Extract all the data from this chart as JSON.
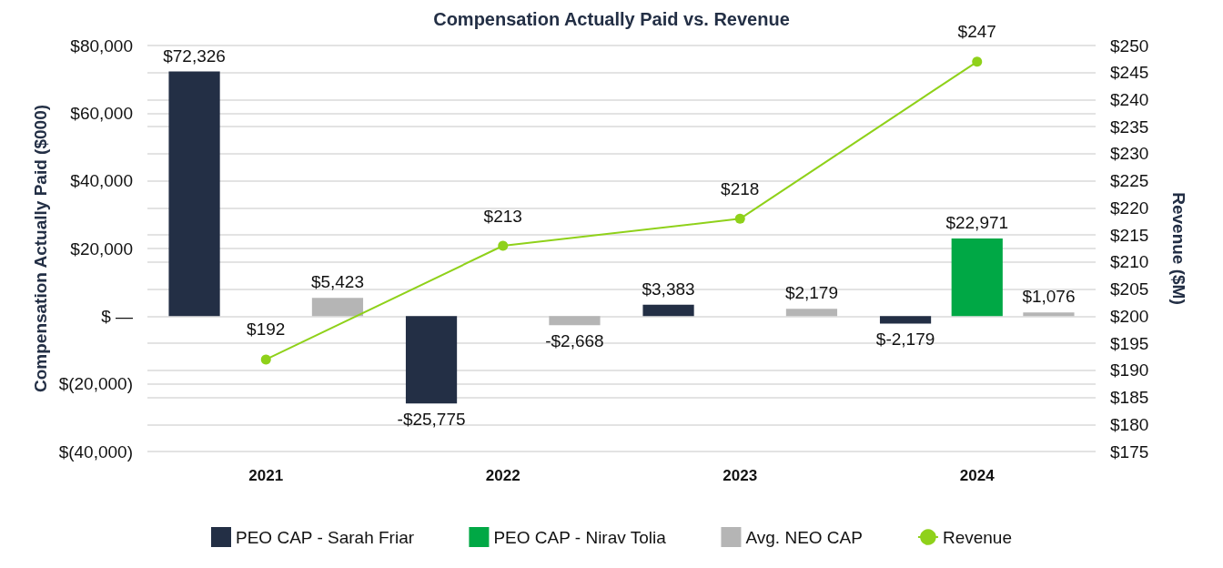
{
  "chart_data": {
    "type": "bar",
    "title": "Compensation Actually Paid vs. Revenue",
    "ylabel": "Compensation Actually Paid ($000)",
    "y2label": "Revenue ($M)",
    "categories": [
      "2021",
      "2022",
      "2023",
      "2024"
    ],
    "series": [
      {
        "name": "PEO CAP - Sarah Friar",
        "color": "#232f45",
        "values": [
          72326,
          -25775,
          3383,
          -2179
        ],
        "value_labels": [
          "$72,326",
          "-$25,775",
          "$3,383",
          "$-2,179"
        ]
      },
      {
        "name": "PEO CAP - Nirav Tolia",
        "color": "#00a845",
        "values": [
          null,
          null,
          null,
          22971
        ],
        "value_labels": [
          null,
          null,
          null,
          "$22,971"
        ]
      },
      {
        "name": "Avg. NEO CAP",
        "color": "#b5b5b5",
        "values": [
          5423,
          -2668,
          2179,
          1076
        ],
        "value_labels": [
          "$5,423",
          "-$2,668",
          "$2,179",
          "$1,076"
        ]
      },
      {
        "name": "Revenue",
        "type": "line",
        "axis": "y2",
        "color": "#8fd11a",
        "values": [
          192,
          213,
          218,
          247
        ],
        "value_labels": [
          "$192",
          "$213",
          "$218",
          "$247"
        ]
      }
    ],
    "ylim": [
      -40000,
      80000
    ],
    "yticks": [
      {
        "value": -40000,
        "label": "$(40,000)"
      },
      {
        "value": -20000,
        "label": "$(20,000)"
      },
      {
        "value": 0,
        "label": "$ —"
      },
      {
        "value": 20000,
        "label": "$20,000"
      },
      {
        "value": 40000,
        "label": "$40,000"
      },
      {
        "value": 60000,
        "label": "$60,000"
      },
      {
        "value": 80000,
        "label": "$80,000"
      }
    ],
    "y2lim": [
      175,
      250
    ],
    "y2ticks": [
      {
        "value": 175,
        "label": "$175"
      },
      {
        "value": 180,
        "label": "$180"
      },
      {
        "value": 185,
        "label": "$185"
      },
      {
        "value": 190,
        "label": "$190"
      },
      {
        "value": 195,
        "label": "$195"
      },
      {
        "value": 200,
        "label": "$200"
      },
      {
        "value": 205,
        "label": "$205"
      },
      {
        "value": 210,
        "label": "$210"
      },
      {
        "value": 215,
        "label": "$215"
      },
      {
        "value": 220,
        "label": "$220"
      },
      {
        "value": 225,
        "label": "$225"
      },
      {
        "value": 230,
        "label": "$230"
      },
      {
        "value": 235,
        "label": "$235"
      },
      {
        "value": 240,
        "label": "$240"
      },
      {
        "value": 245,
        "label": "$245"
      },
      {
        "value": 250,
        "label": "$250"
      }
    ],
    "grid": "y",
    "legend": "bottom",
    "marker": "circle"
  }
}
